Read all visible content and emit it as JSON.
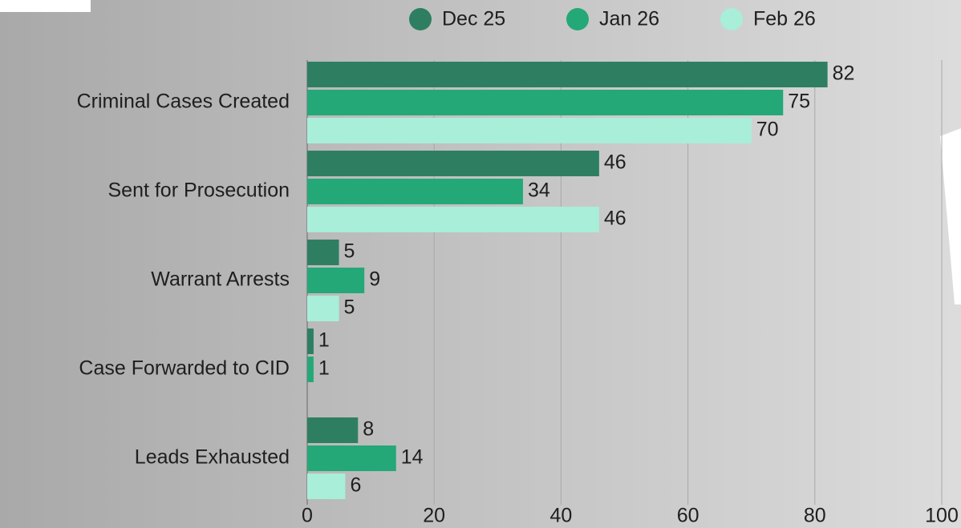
{
  "chart_data": {
    "type": "hbar",
    "categories": [
      "Criminal Cases Created",
      "Sent for Prosecution",
      "Warrant Arrests",
      "Case Forwarded to CID",
      "Leads Exhausted"
    ],
    "series": [
      {
        "name": "Dec 25",
        "color": "#2e7f62",
        "values": [
          82,
          46,
          5,
          1,
          8
        ]
      },
      {
        "name": "Jan 26",
        "color": "#24a878",
        "values": [
          75,
          34,
          9,
          1,
          14
        ]
      },
      {
        "name": "Feb 26",
        "color": "#a8eed8",
        "values": [
          70,
          46,
          5,
          null,
          6
        ]
      }
    ],
    "xlim": [
      0,
      100
    ],
    "xticks": [
      0,
      20,
      40,
      60,
      80,
      100
    ],
    "grid": true,
    "legend": "top"
  }
}
